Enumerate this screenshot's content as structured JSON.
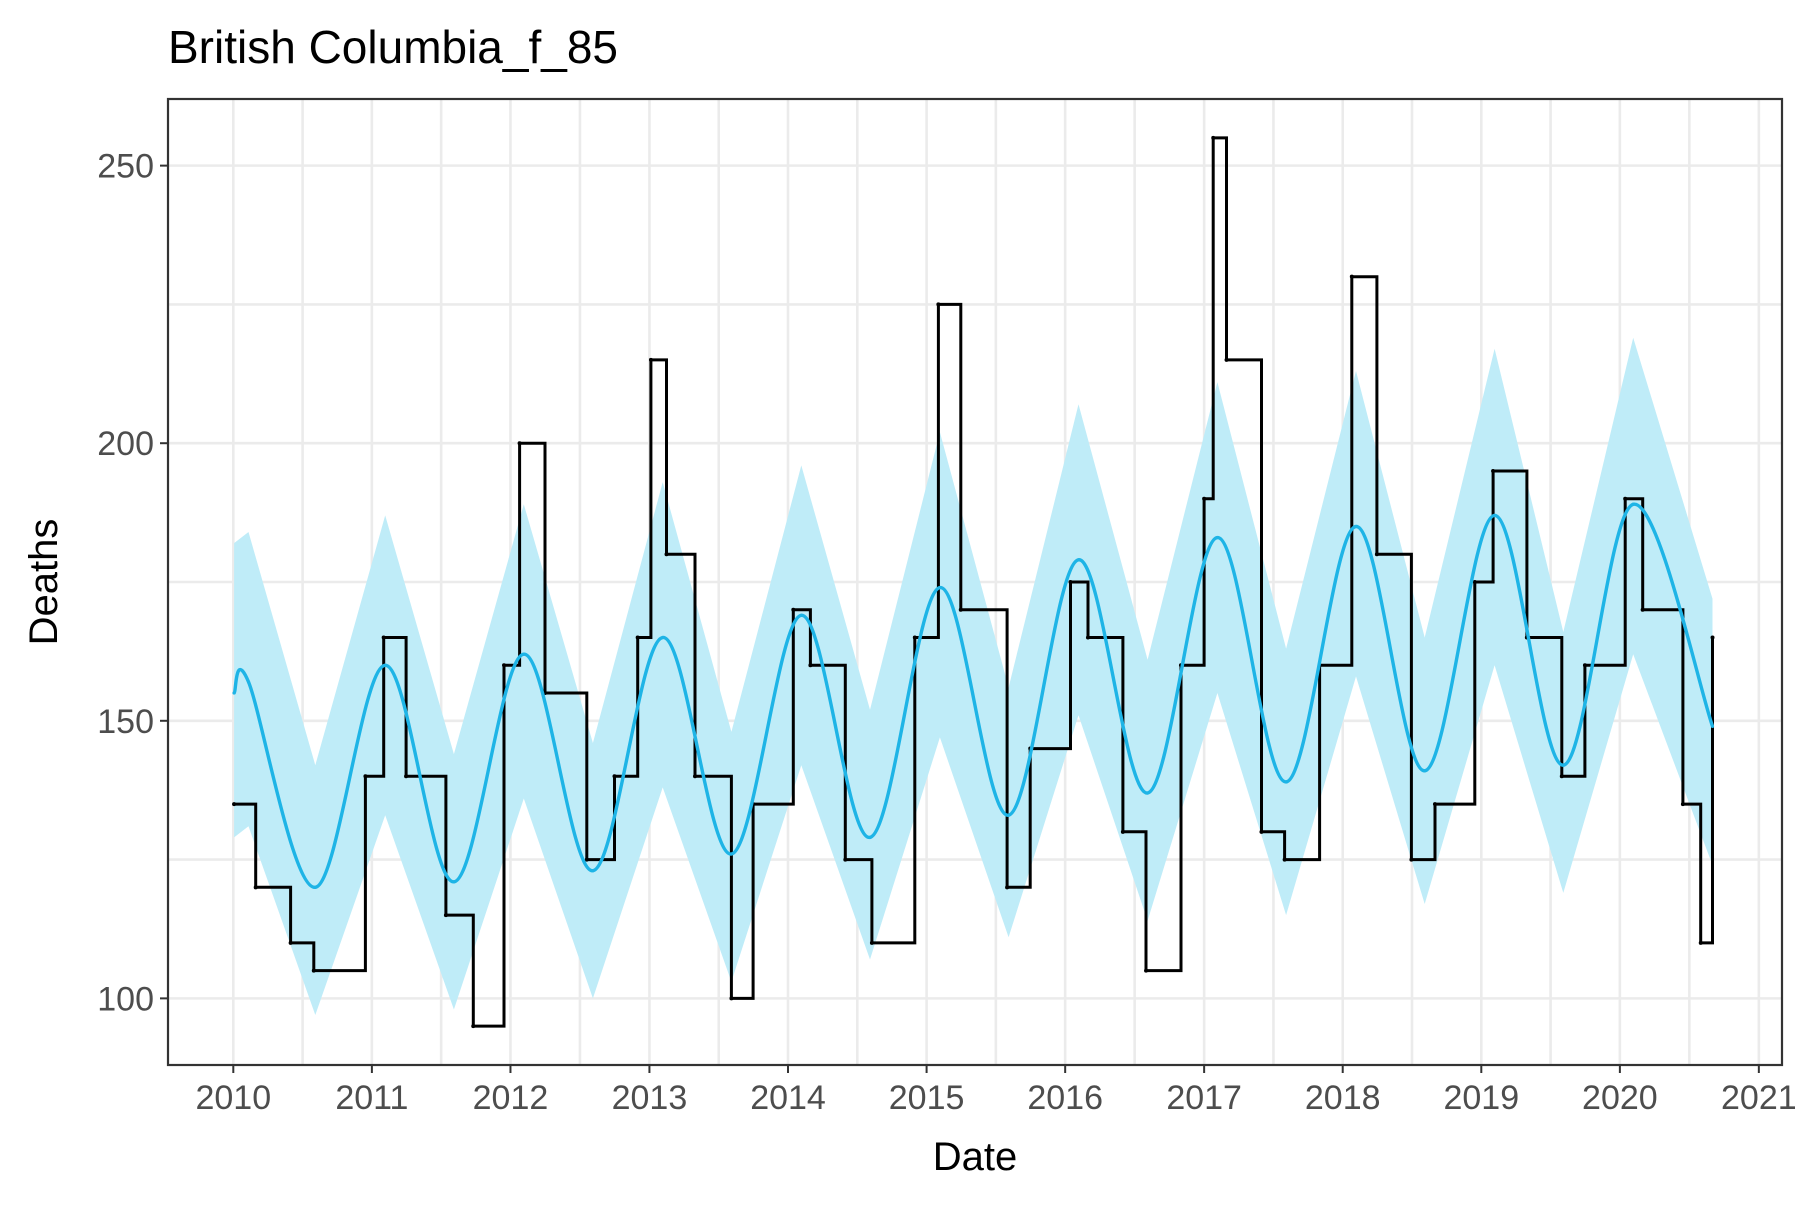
{
  "chart_data": {
    "type": "line",
    "title": "British Columbia_f_85",
    "xlabel": "Date",
    "ylabel": "Deaths",
    "x_ticks": [
      "2010",
      "2011",
      "2012",
      "2013",
      "2014",
      "2015",
      "2016",
      "2017",
      "2018",
      "2019",
      "2020",
      "2021"
    ],
    "y_ticks": [
      "100",
      "150",
      "200",
      "250"
    ],
    "xlim": [
      "2009-07-13",
      "2021-03-03"
    ],
    "ylim": [
      88,
      262
    ],
    "grid": true,
    "legend": "none",
    "colors": {
      "observed": "#000000",
      "fit": "#1eb4e6",
      "band": "#bfecf8",
      "panel_border": "#333333",
      "grid": "#ebebeb"
    },
    "series": [
      {
        "role": "observed",
        "x": [
          "2010-01-03",
          "2010-03-01",
          "2010-06-01",
          "2010-08-01",
          "2010-12-15",
          "2011-02-01",
          "2011-04-01",
          "2011-07-15",
          "2011-09-25",
          "2011-12-15",
          "2012-01-25",
          "2012-04-01",
          "2012-07-20",
          "2012-10-01",
          "2012-12-01",
          "2013-01-05",
          "2013-02-15",
          "2013-05-01",
          "2013-08-05",
          "2013-10-01",
          "2014-01-15",
          "2014-03-01",
          "2014-06-01",
          "2014-08-10",
          "2014-12-01",
          "2015-02-01",
          "2015-04-01",
          "2015-08-01",
          "2015-10-01",
          "2016-01-15",
          "2016-03-01",
          "2016-06-01",
          "2016-08-01",
          "2016-11-01",
          "2017-01-01",
          "2017-01-25",
          "2017-03-01",
          "2017-06-01",
          "2017-08-01",
          "2017-11-01",
          "2018-01-25",
          "2018-04-01",
          "2018-07-01",
          "2018-09-01",
          "2018-12-15",
          "2019-02-01",
          "2019-05-01",
          "2019-08-01",
          "2019-10-01",
          "2020-01-15",
          "2020-03-01",
          "2020-06-15",
          "2020-08-01",
          "2020-09-01"
        ],
        "y": [
          135,
          120,
          110,
          105,
          140,
          165,
          140,
          115,
          95,
          160,
          200,
          155,
          125,
          140,
          165,
          215,
          180,
          140,
          100,
          135,
          170,
          160,
          125,
          110,
          165,
          225,
          170,
          120,
          145,
          175,
          165,
          130,
          105,
          160,
          190,
          255,
          215,
          130,
          125,
          160,
          230,
          180,
          125,
          135,
          175,
          195,
          165,
          140,
          160,
          190,
          170,
          135,
          110,
          165
        ]
      },
      {
        "role": "fit",
        "x": [
          "2010-01-03",
          "2010-02-10",
          "2010-08-05",
          "2011-02-05",
          "2011-08-05",
          "2012-02-05",
          "2012-08-05",
          "2013-02-05",
          "2013-08-05",
          "2014-02-05",
          "2014-08-05",
          "2015-02-05",
          "2015-08-05",
          "2016-02-05",
          "2016-08-05",
          "2017-02-05",
          "2017-08-05",
          "2018-02-05",
          "2018-08-05",
          "2019-02-05",
          "2019-08-05",
          "2020-02-05",
          "2020-09-01"
        ],
        "y": [
          155,
          157,
          120,
          160,
          121,
          162,
          123,
          165,
          126,
          169,
          129,
          174,
          133,
          179,
          137,
          183,
          139,
          185,
          141,
          187,
          142,
          189,
          149
        ]
      },
      {
        "role": "band_upper",
        "x": [
          "2010-01-03",
          "2010-02-10",
          "2010-08-05",
          "2011-02-05",
          "2011-08-05",
          "2012-02-05",
          "2012-08-05",
          "2013-02-05",
          "2013-08-05",
          "2014-02-05",
          "2014-08-05",
          "2015-02-05",
          "2015-08-05",
          "2016-02-05",
          "2016-08-05",
          "2017-02-05",
          "2017-08-05",
          "2018-02-05",
          "2018-08-05",
          "2019-02-05",
          "2019-08-05",
          "2020-02-05",
          "2020-09-01"
        ],
        "y": [
          182,
          184,
          142,
          187,
          144,
          189,
          146,
          193,
          148,
          196,
          152,
          202,
          156,
          207,
          161,
          211,
          163,
          213,
          165,
          217,
          166,
          219,
          172
        ]
      },
      {
        "role": "band_lower",
        "x": [
          "2010-01-03",
          "2010-02-10",
          "2010-08-05",
          "2011-02-05",
          "2011-08-05",
          "2012-02-05",
          "2012-08-05",
          "2013-02-05",
          "2013-08-05",
          "2014-02-05",
          "2014-08-05",
          "2015-02-05",
          "2015-08-05",
          "2016-02-05",
          "2016-08-05",
          "2017-02-05",
          "2017-08-05",
          "2018-02-05",
          "2018-08-05",
          "2019-02-05",
          "2019-08-05",
          "2020-02-05",
          "2020-09-01"
        ],
        "y": [
          129,
          131,
          97,
          133,
          98,
          136,
          100,
          138,
          103,
          142,
          107,
          147,
          111,
          151,
          114,
          155,
          115,
          158,
          117,
          160,
          119,
          162,
          124
        ]
      }
    ]
  }
}
